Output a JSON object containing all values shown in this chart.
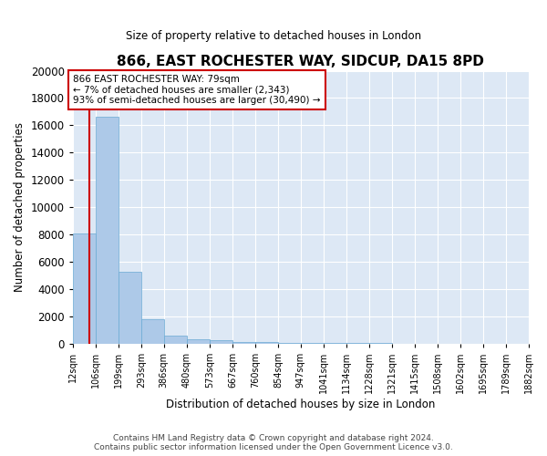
{
  "title": "866, EAST ROCHESTER WAY, SIDCUP, DA15 8PD",
  "subtitle": "Size of property relative to detached houses in London",
  "xlabel": "Distribution of detached houses by size in London",
  "ylabel": "Number of detached properties",
  "footer_line1": "Contains HM Land Registry data © Crown copyright and database right 2024.",
  "footer_line2": "Contains public sector information licensed under the Open Government Licence v3.0.",
  "annotation_line1": "866 EAST ROCHESTER WAY: 79sqm",
  "annotation_line2": "← 7% of detached houses are smaller (2,343)",
  "annotation_line3": "93% of semi-detached houses are larger (30,490) →",
  "property_size": 79,
  "bar_color": "#adc9e8",
  "bar_edge_color": "#6aaad4",
  "bg_color": "#dde8f5",
  "grid_color": "#ffffff",
  "vline_color": "#cc0000",
  "annotation_box_color": "#cc0000",
  "bin_edges": [
    12,
    106,
    199,
    293,
    386,
    480,
    573,
    667,
    760,
    854,
    947,
    1041,
    1134,
    1228,
    1321,
    1415,
    1508,
    1602,
    1695,
    1789,
    1882
  ],
  "bin_labels": [
    "12sqm",
    "106sqm",
    "199sqm",
    "293sqm",
    "386sqm",
    "480sqm",
    "573sqm",
    "667sqm",
    "760sqm",
    "854sqm",
    "947sqm",
    "1041sqm",
    "1134sqm",
    "1228sqm",
    "1321sqm",
    "1415sqm",
    "1508sqm",
    "1602sqm",
    "1695sqm",
    "1789sqm",
    "1882sqm"
  ],
  "bar_heights": [
    8100,
    16600,
    5300,
    1800,
    620,
    350,
    230,
    160,
    100,
    80,
    60,
    45,
    35,
    28,
    22,
    18,
    15,
    12,
    10,
    8
  ],
  "ylim": [
    0,
    20000
  ],
  "yticks": [
    0,
    2000,
    4000,
    6000,
    8000,
    10000,
    12000,
    14000,
    16000,
    18000,
    20000
  ]
}
